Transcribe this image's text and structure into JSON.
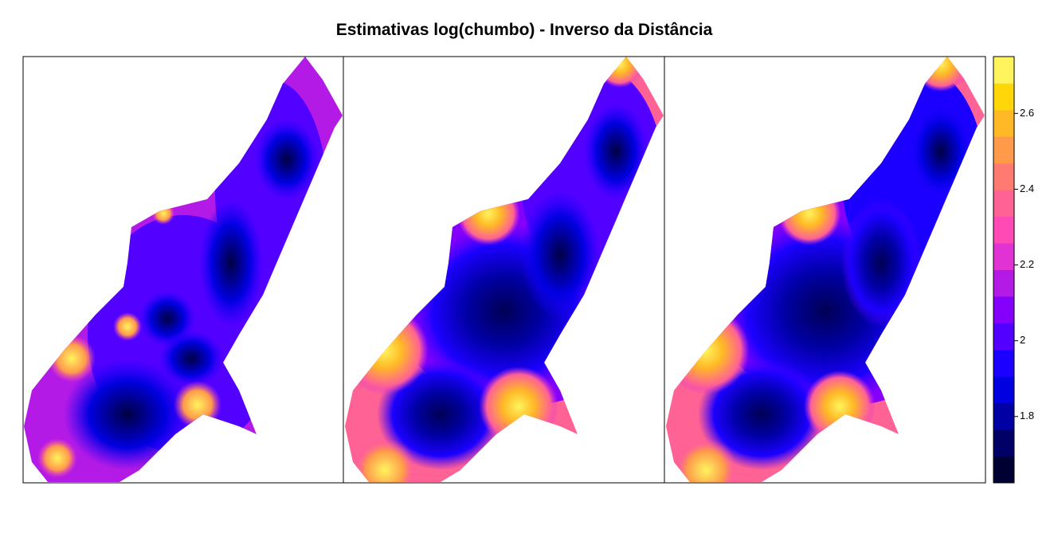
{
  "chart_data": {
    "type": "levelplot",
    "title": "Estimativas log(chumbo) - Inverso da Distância",
    "zlim": [
      1.625,
      2.75
    ],
    "zticks": [
      1.8,
      2.0,
      2.2,
      2.4,
      2.6
    ],
    "colors": [
      "#000033",
      "#000066",
      "#0000A5",
      "#0000E0",
      "#1C00FF",
      "#5200FF",
      "#8400FA",
      "#B31AE5",
      "#E132D4",
      "#FF4AB5",
      "#FF6294",
      "#FF7A70",
      "#FF9A4B",
      "#FFB826",
      "#FFD607",
      "#FFF45D"
    ]
  }
}
